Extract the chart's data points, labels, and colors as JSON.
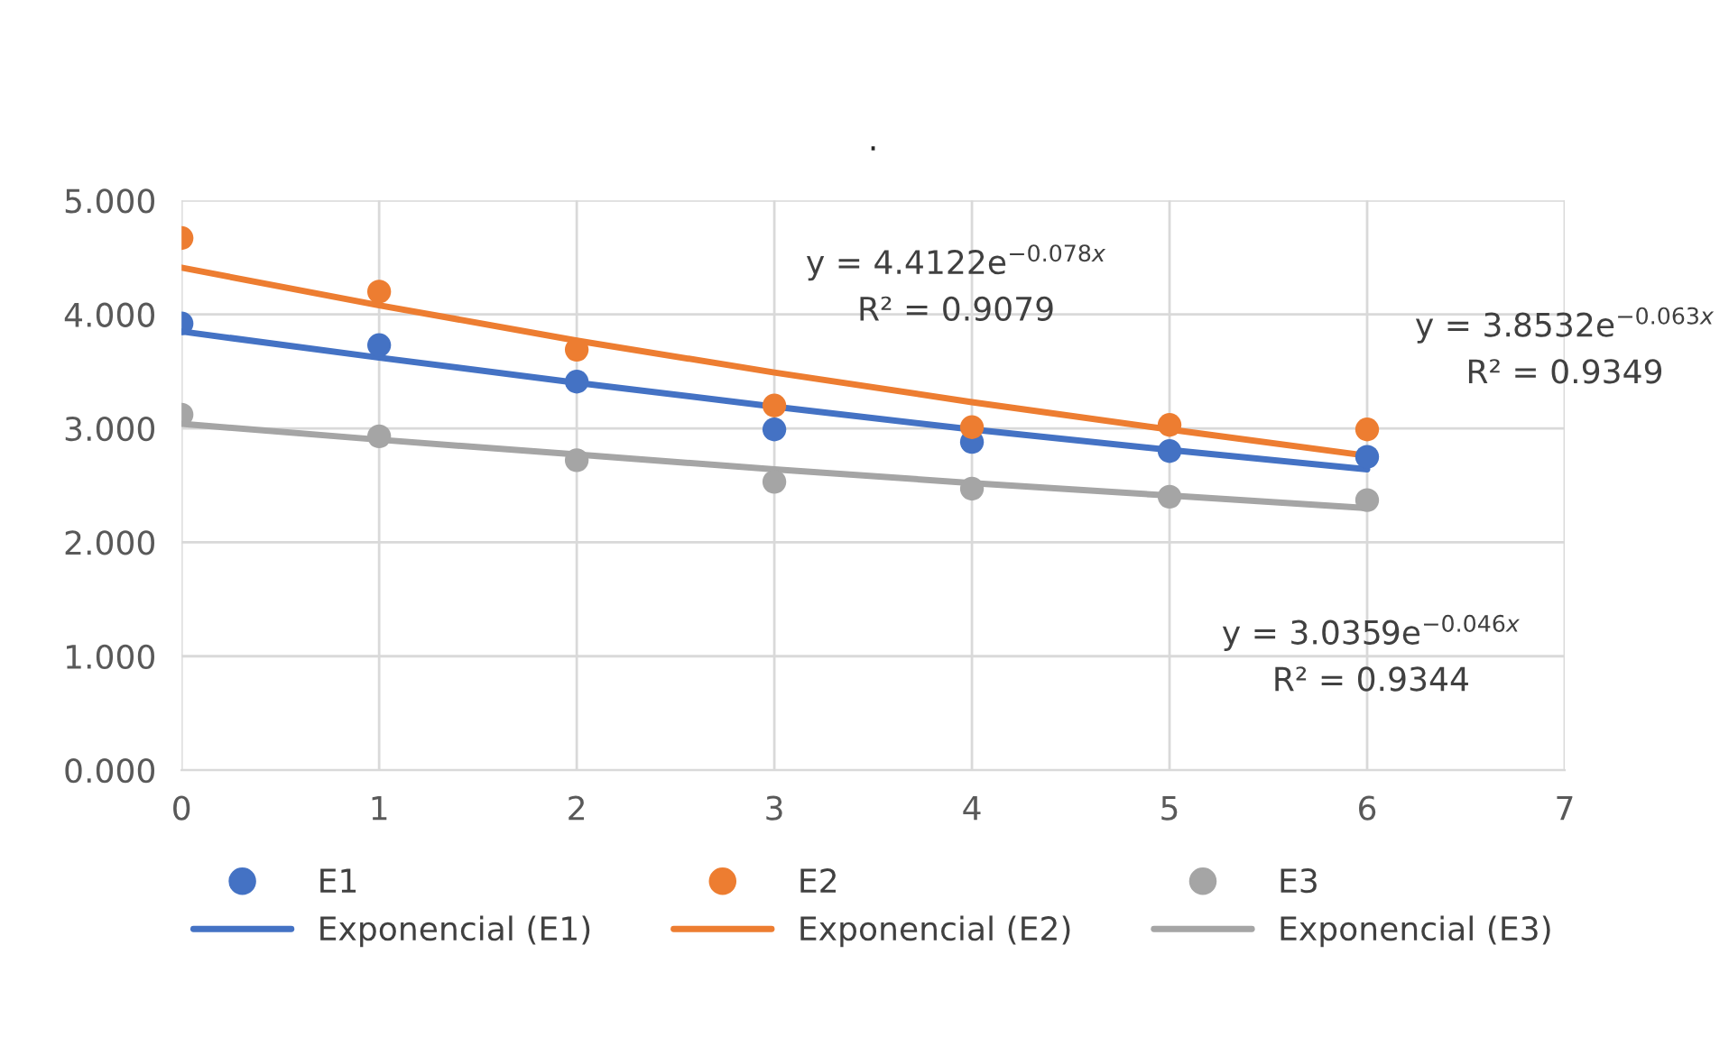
{
  "chart_data": {
    "type": "scatter",
    "title": ".",
    "xlim": [
      0,
      7
    ],
    "xticks": [
      0,
      1,
      2,
      3,
      4,
      5,
      6,
      7
    ],
    "ylim": [
      0,
      5
    ],
    "yticks": [
      {
        "value": 0,
        "label": "0.000"
      },
      {
        "value": 1,
        "label": "1.000"
      },
      {
        "value": 2,
        "label": "2.000"
      },
      {
        "value": 3,
        "label": "3.000"
      },
      {
        "value": 4,
        "label": "4.000"
      },
      {
        "value": 5,
        "label": "5.000"
      }
    ],
    "grid": true,
    "legend": "bottom",
    "series": [
      {
        "name": "E1",
        "marker": "circle",
        "color": "#4472c4",
        "x": [
          0,
          1,
          2,
          3,
          4,
          5,
          6
        ],
        "values": [
          3.92,
          3.73,
          3.41,
          2.99,
          2.88,
          2.8,
          2.75
        ]
      },
      {
        "name": "E2",
        "marker": "circle",
        "color": "#ed7d31",
        "x": [
          0,
          1,
          2,
          3,
          4,
          5,
          6
        ],
        "values": [
          4.67,
          4.2,
          3.69,
          3.2,
          3.01,
          3.03,
          2.99
        ]
      },
      {
        "name": "E3",
        "marker": "circle",
        "color": "#a5a5a5",
        "x": [
          0,
          1,
          2,
          3,
          4,
          5,
          6
        ],
        "values": [
          3.12,
          2.93,
          2.72,
          2.53,
          2.47,
          2.4,
          2.37
        ]
      },
      {
        "name": "Exponencial (E1)",
        "type": "line",
        "color": "#4472c4",
        "x": [
          0,
          1,
          2,
          3,
          4,
          5,
          6
        ],
        "values": [
          3.85,
          3.62,
          3.4,
          3.19,
          2.99,
          2.81,
          2.64
        ]
      },
      {
        "name": "Exponencial (E2)",
        "type": "line",
        "color": "#ed7d31",
        "x": [
          0,
          1,
          2,
          3,
          4,
          5,
          6
        ],
        "values": [
          4.41,
          4.08,
          3.77,
          3.49,
          3.23,
          2.99,
          2.76
        ]
      },
      {
        "name": "Exponencial (E3)",
        "type": "line",
        "color": "#a5a5a5",
        "x": [
          0,
          1,
          2,
          3,
          4,
          5,
          6
        ],
        "values": [
          3.04,
          2.9,
          2.77,
          2.64,
          2.52,
          2.41,
          2.3
        ]
      }
    ],
    "annotations": [
      "y = 4.4122e$^{−0.078x}$\nR² = 0.9079",
      "y = 3.8532e$^{−0.063x}$\nR² = 0.9349",
      "y = 3.0359e$^{−0.046x}$\nR² = 0.9344"
    ]
  }
}
